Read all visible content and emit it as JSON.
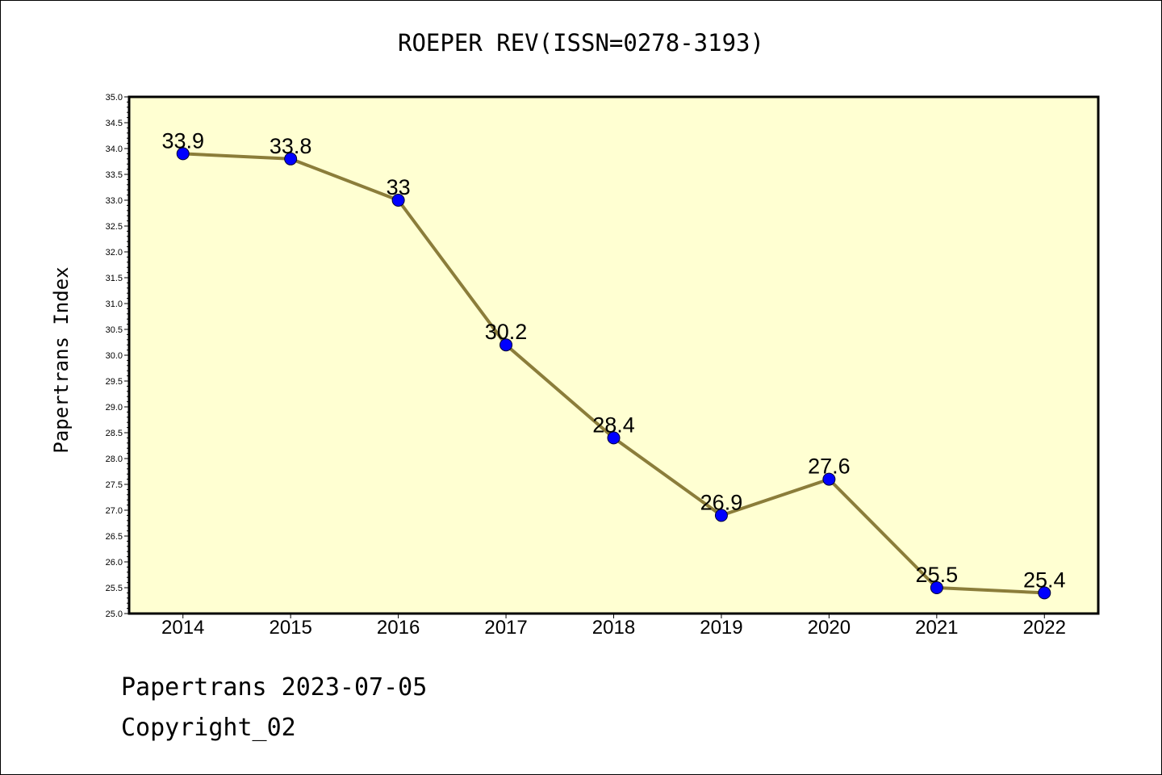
{
  "title": "ROEPER REV(ISSN=0278-3193)",
  "footer": {
    "line1": "Papertrans 2023-07-05",
    "line2": "Copyright_02"
  },
  "colors": {
    "plot_bg": "#ffffd2",
    "line": "#8b7d3a",
    "marker": "#0000ff"
  },
  "chart_data": {
    "type": "line",
    "title": "ROEPER REV(ISSN=0278-3193)",
    "xlabel": "",
    "ylabel": "Papertrans Index",
    "categories": [
      "2014",
      "2015",
      "2016",
      "2017",
      "2018",
      "2019",
      "2020",
      "2021",
      "2022"
    ],
    "values": [
      33.9,
      33.8,
      33,
      30.2,
      28.4,
      26.9,
      27.6,
      25.5,
      25.4
    ],
    "data_labels": [
      "33.9",
      "33.8",
      "33",
      "30.2",
      "28.4",
      "26.9",
      "27.6",
      "25.5",
      "25.4"
    ],
    "ylim": [
      25.0,
      35.0
    ],
    "yticks": [
      "25.0",
      "25.5",
      "26.0",
      "26.5",
      "27.0",
      "27.5",
      "28.0",
      "28.5",
      "29.0",
      "29.5",
      "30.0",
      "30.5",
      "31.0",
      "31.5",
      "32.0",
      "32.5",
      "33.0",
      "33.5",
      "34.0",
      "34.5",
      "35.0"
    ],
    "grid": false,
    "legend": "none"
  }
}
